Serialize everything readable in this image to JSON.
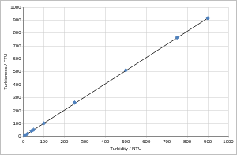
{
  "chart_data": {
    "type": "scatter",
    "xlabel": "Turbidity / NTU",
    "ylabel": "Turbidness / FTU",
    "xlim": [
      0,
      1000
    ],
    "xticks": [
      0,
      100,
      200,
      300,
      400,
      500,
      600,
      700,
      800,
      900,
      1000
    ],
    "ylim": [
      0,
      1000
    ],
    "yticks": [
      0,
      100,
      200,
      300,
      400,
      500,
      600,
      700,
      800,
      900,
      1000
    ],
    "grid": true,
    "series": [
      {
        "type": "scatter",
        "color": "#4f81bd",
        "marker": "diamond",
        "x": [
          0,
          5,
          10,
          20,
          40,
          50,
          100,
          250,
          500,
          750,
          900
        ],
        "values": [
          0,
          5,
          10,
          20,
          42,
          52,
          102,
          262,
          512,
          765,
          915
        ]
      },
      {
        "type": "line",
        "color": "#000000",
        "line_style": "solid",
        "x": [
          0,
          900
        ],
        "values": [
          0,
          915
        ]
      }
    ]
  }
}
